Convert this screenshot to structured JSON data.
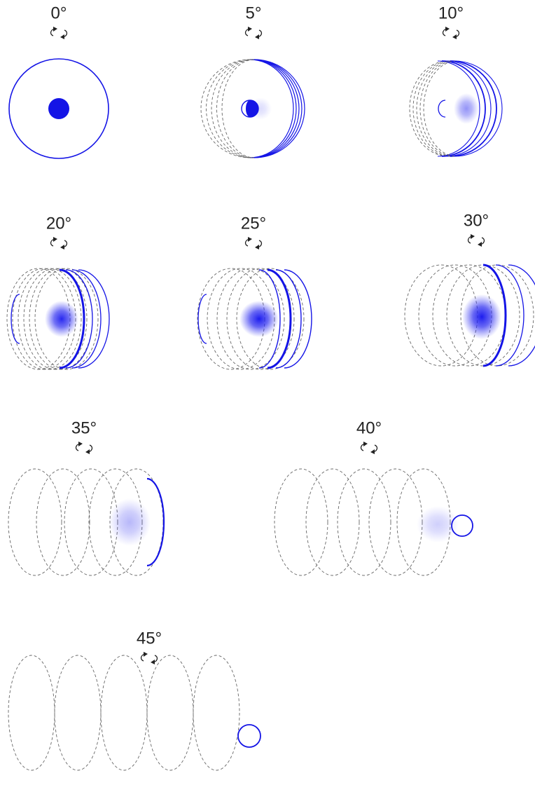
{
  "panels": [
    {
      "label": "0°"
    },
    {
      "label": "5°"
    },
    {
      "label": "10°"
    },
    {
      "label": "20°"
    },
    {
      "label": "25°"
    },
    {
      "label": "30°"
    },
    {
      "label": "35°"
    },
    {
      "label": "40°"
    },
    {
      "label": "45°"
    }
  ]
}
